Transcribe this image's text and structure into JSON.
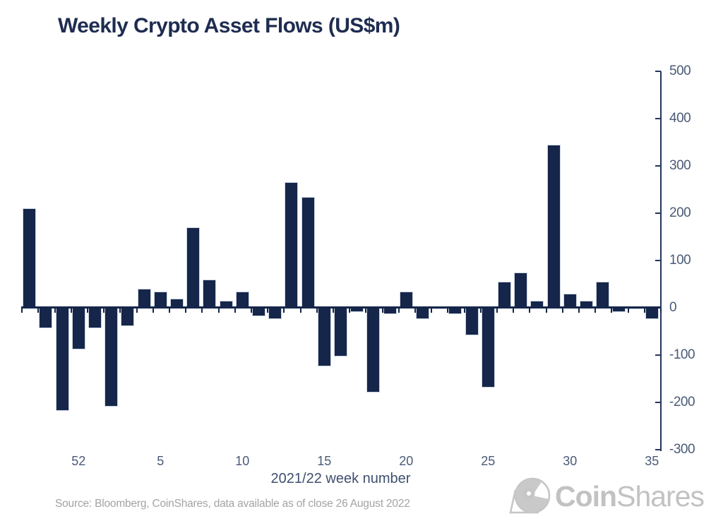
{
  "title": "Weekly Crypto Asset Flows (US$m)",
  "source_note": "Source: Bloomberg, CoinShares, data available as of close 26 August 2022",
  "logo": {
    "bold": "Coin",
    "light": "Shares",
    "icon": "coinshares-telescope-icon"
  },
  "colors": {
    "bar": "#16264a",
    "axis": "#26365c",
    "tick_label": "#4a5a78",
    "title": "#1e2c50",
    "source_text": "#a3a3a3",
    "logo_gray": "#c2c2c2",
    "background": "#ffffff"
  },
  "chart_data": {
    "type": "bar",
    "title": "Weekly Crypto Asset Flows (US$m)",
    "xlabel": "2021/22 week number",
    "ylabel": "",
    "ylim": [
      -300,
      500
    ],
    "y_ticks": [
      500,
      400,
      300,
      200,
      100,
      0,
      -100,
      -200,
      -300
    ],
    "y_axis_side": "right",
    "grid": false,
    "legend": "none",
    "x_weeks": [
      49,
      50,
      51,
      52,
      1,
      2,
      3,
      4,
      5,
      6,
      7,
      8,
      9,
      10,
      11,
      12,
      13,
      14,
      15,
      16,
      17,
      18,
      19,
      20,
      21,
      22,
      23,
      24,
      25,
      26,
      27,
      28,
      29,
      30,
      31,
      32,
      33,
      34,
      35
    ],
    "values": [
      210,
      -45,
      -220,
      -90,
      -45,
      -210,
      -40,
      40,
      35,
      20,
      170,
      60,
      15,
      35,
      -20,
      -25,
      265,
      235,
      -125,
      -105,
      -10,
      -180,
      -15,
      35,
      -25,
      -5,
      -15,
      -60,
      -170,
      55,
      75,
      15,
      345,
      30,
      15,
      55,
      -10,
      -5,
      -25
    ],
    "x_tick_weeks": [
      52,
      5,
      10,
      15,
      20,
      25,
      30,
      35
    ]
  }
}
